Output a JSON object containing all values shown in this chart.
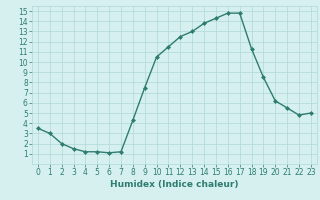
{
  "x": [
    0,
    1,
    2,
    3,
    4,
    5,
    6,
    7,
    8,
    9,
    10,
    11,
    12,
    13,
    14,
    15,
    16,
    17,
    18,
    19,
    20,
    21,
    22,
    23
  ],
  "y": [
    3.5,
    3.0,
    2.0,
    1.5,
    1.2,
    1.2,
    1.1,
    1.2,
    4.3,
    7.5,
    10.5,
    11.5,
    12.5,
    13.0,
    13.8,
    14.3,
    14.8,
    14.8,
    11.3,
    8.5,
    6.2,
    5.5,
    4.8,
    5.0
  ],
  "line_color": "#2e7d6e",
  "marker": "D",
  "marker_size": 2,
  "bg_color": "#d6f0f0",
  "grid_color": "#b0d8d8",
  "xlabel": "Humidex (Indice chaleur)",
  "xlim": [
    -0.5,
    23.5
  ],
  "ylim": [
    0,
    15.5
  ],
  "xticks": [
    0,
    1,
    2,
    3,
    4,
    5,
    6,
    7,
    8,
    9,
    10,
    11,
    12,
    13,
    14,
    15,
    16,
    17,
    18,
    19,
    20,
    21,
    22,
    23
  ],
  "yticks": [
    1,
    2,
    3,
    4,
    5,
    6,
    7,
    8,
    9,
    10,
    11,
    12,
    13,
    14,
    15
  ],
  "font_color": "#2e7d6e",
  "tick_fontsize": 5.5,
  "xlabel_fontsize": 6.5,
  "linewidth": 1.0
}
